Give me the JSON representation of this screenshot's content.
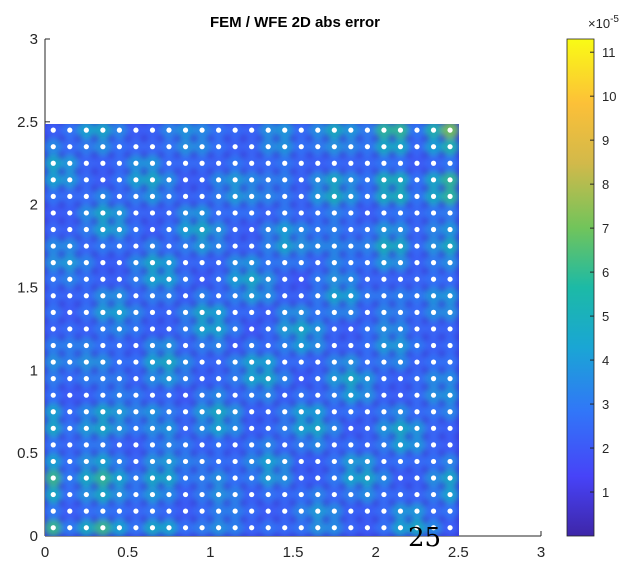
{
  "chart_data": {
    "type": "heatmap",
    "title": "FEM / WFE 2D abs error",
    "xlabel": "",
    "ylabel": "",
    "xlim": [
      0,
      3
    ],
    "ylim": [
      0,
      3
    ],
    "x_ticks": [
      "0",
      "0.5",
      "1",
      "1.5",
      "2",
      "2.5",
      "3"
    ],
    "y_ticks": [
      "0",
      "0.5",
      "1",
      "1.5",
      "2",
      "2.5",
      "3"
    ],
    "data_extent": {
      "x": [
        0,
        2.5
      ],
      "y": [
        0,
        2.5
      ]
    },
    "grid": false,
    "nodes": {
      "count_per_axis": 25,
      "spacing": 0.1,
      "color": "#ffffff"
    },
    "colorbar": {
      "location": "right",
      "ticks": [
        "1",
        "2",
        "3",
        "4",
        "5",
        "6",
        "7",
        "8",
        "9",
        "10",
        "11"
      ],
      "multiplier": "×10",
      "exponent": "-5",
      "range": [
        0,
        11.3
      ],
      "colormap": [
        "#3e26a8",
        "#4743f8",
        "#3176f8",
        "#1aa6d4",
        "#1cbaa6",
        "#71c45b",
        "#d2b94a",
        "#fcc038",
        "#f9fb15"
      ]
    }
  },
  "page_number": "25"
}
